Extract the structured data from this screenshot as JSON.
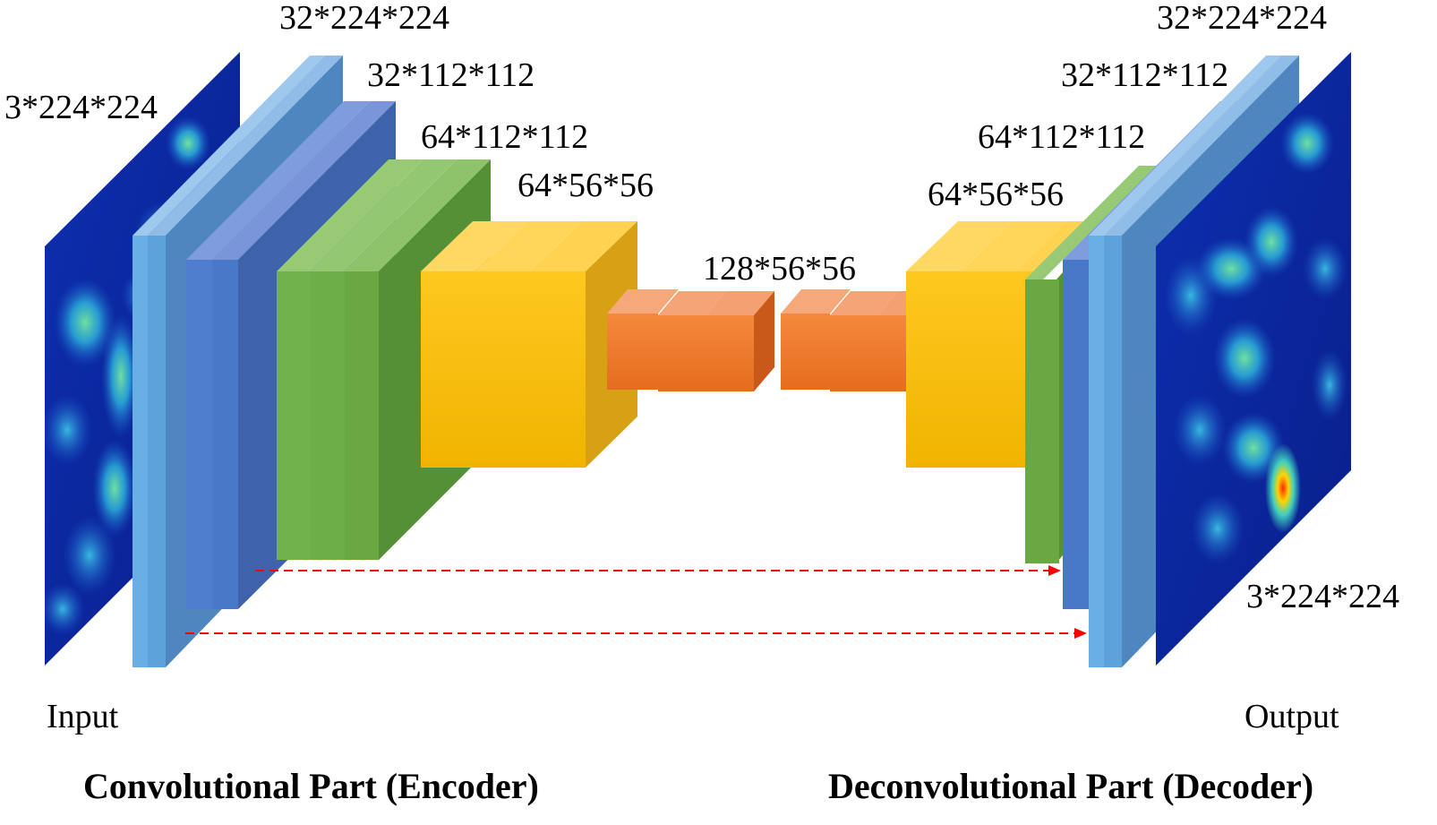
{
  "colors": {
    "blue_light": "#5b9bd5",
    "blue_dark": "#4472c4",
    "green": "#70ad47",
    "yellow": "#ffc000",
    "orange": "#ed7d31",
    "skip_arrow": "#ff0000",
    "heatmap_base": "#0a2a9a",
    "heatmap_hot": "#ffef40"
  },
  "encoder": {
    "input_dim": "3*224*224",
    "conv1_dim": "32*224*224",
    "pool1_dim": "32*112*112",
    "conv2_dim": "64*112*112",
    "pool2_dim": "64*56*56",
    "input_label": "Input",
    "caption": "Convolutional Part (Encoder)"
  },
  "bottleneck": {
    "dim": "128*56*56"
  },
  "decoder": {
    "output_dim": "3*224*224",
    "deconv1_dim": "32*224*224",
    "unpool1_dim": "32*112*112",
    "deconv2_dim": "64*112*112",
    "unpool2_dim": "64*56*56",
    "output_label": "Output",
    "caption": "Deconvolutional Part (Decoder)"
  },
  "skip_connections": [
    {
      "from": "pool1",
      "to": "unpool1"
    },
    {
      "from": "conv1",
      "to": "deconv1"
    }
  ]
}
